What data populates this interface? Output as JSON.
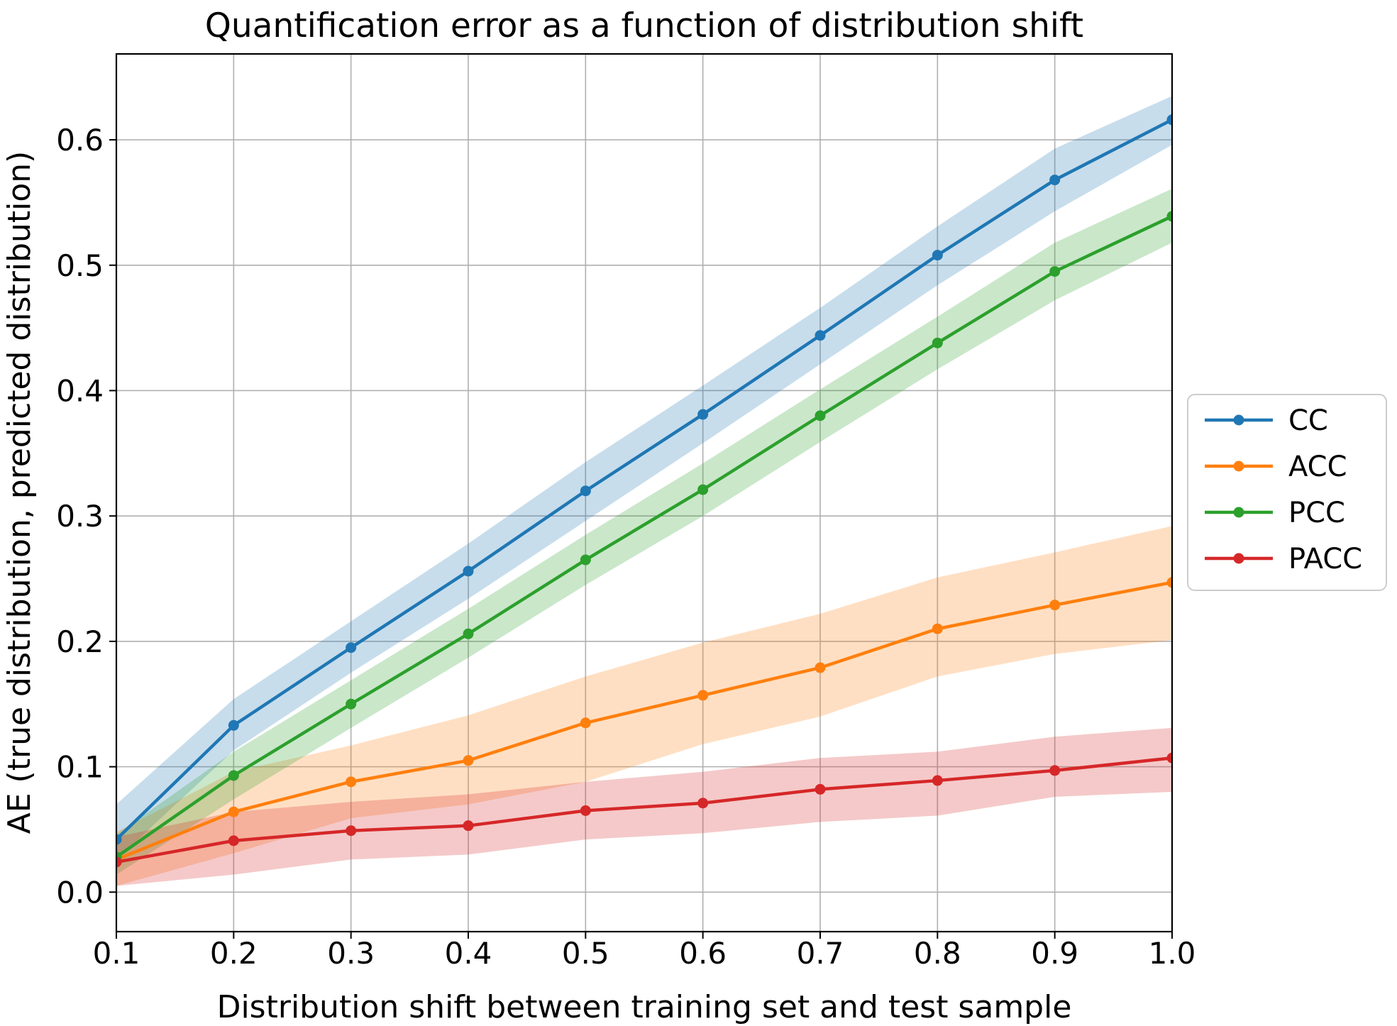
{
  "chart_data": {
    "type": "line",
    "title": "Quantification error as a function of distribution shift",
    "xlabel": "Distribution shift between training set and test sample",
    "ylabel": "AE (true distribution, predicted distribution)",
    "x": [
      0.1,
      0.2,
      0.3,
      0.4,
      0.5,
      0.6,
      0.7,
      0.8,
      0.9,
      1.0
    ],
    "xlim": [
      0.1,
      1.0
    ],
    "ylim": [
      -0.0315,
      0.6685
    ],
    "xticks": [
      0.1,
      0.2,
      0.3,
      0.4,
      0.5,
      0.6,
      0.7,
      0.8,
      0.9,
      1.0
    ],
    "yticks": [
      0.0,
      0.1,
      0.2,
      0.3,
      0.4,
      0.5,
      0.6
    ],
    "x_tick_labels": [
      "0.1",
      "0.2",
      "0.3",
      "0.4",
      "0.5",
      "0.6",
      "0.7",
      "0.8",
      "0.9",
      "1.0"
    ],
    "y_tick_labels": [
      "0.0",
      "0.1",
      "0.2",
      "0.3",
      "0.4",
      "0.5",
      "0.6"
    ],
    "grid": true,
    "marker": "circle",
    "legend_position": "outside-right",
    "series": [
      {
        "name": "CC",
        "color": "#1f77b4",
        "values": [
          0.042,
          0.133,
          0.195,
          0.256,
          0.32,
          0.381,
          0.444,
          0.508,
          0.568,
          0.616
        ],
        "band_lower": [
          0.026,
          0.113,
          0.175,
          0.234,
          0.296,
          0.358,
          0.421,
          0.484,
          0.543,
          0.596
        ],
        "band_upper": [
          0.07,
          0.154,
          0.216,
          0.278,
          0.343,
          0.404,
          0.466,
          0.531,
          0.593,
          0.635
        ]
      },
      {
        "name": "ACC",
        "color": "#ff7f0e",
        "values": [
          0.026,
          0.064,
          0.088,
          0.105,
          0.135,
          0.157,
          0.179,
          0.21,
          0.229,
          0.247
        ],
        "band_lower": [
          0.005,
          0.031,
          0.059,
          0.07,
          0.088,
          0.118,
          0.14,
          0.172,
          0.19,
          0.201
        ],
        "band_upper": [
          0.048,
          0.096,
          0.117,
          0.141,
          0.172,
          0.199,
          0.222,
          0.251,
          0.271,
          0.292
        ]
      },
      {
        "name": "PCC",
        "color": "#2ca02c",
        "values": [
          0.028,
          0.093,
          0.15,
          0.206,
          0.265,
          0.321,
          0.38,
          0.438,
          0.495,
          0.539
        ],
        "band_lower": [
          0.014,
          0.074,
          0.131,
          0.187,
          0.245,
          0.3,
          0.359,
          0.417,
          0.472,
          0.518
        ],
        "band_upper": [
          0.046,
          0.112,
          0.169,
          0.226,
          0.285,
          0.342,
          0.401,
          0.459,
          0.518,
          0.561
        ]
      },
      {
        "name": "PACC",
        "color": "#d62728",
        "values": [
          0.024,
          0.041,
          0.049,
          0.053,
          0.065,
          0.071,
          0.082,
          0.089,
          0.097,
          0.107
        ],
        "band_lower": [
          0.005,
          0.014,
          0.026,
          0.03,
          0.042,
          0.047,
          0.056,
          0.061,
          0.076,
          0.08
        ],
        "band_upper": [
          0.044,
          0.064,
          0.072,
          0.078,
          0.088,
          0.096,
          0.107,
          0.112,
          0.124,
          0.131
        ]
      }
    ]
  },
  "styles": {
    "background": "#ffffff",
    "text_color": "#000000",
    "grid_color": "#b0b0b0",
    "spine_color": "#000000",
    "tick_color": "#000000",
    "legend_border_color": "#cccccc",
    "legend_background": "#ffffff",
    "band_alpha": 0.25
  }
}
